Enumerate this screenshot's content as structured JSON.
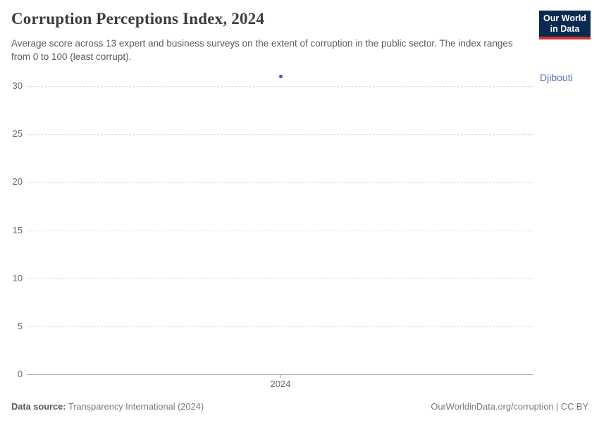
{
  "header": {
    "title": "Corruption Perceptions Index, 2024",
    "subtitle": "Average score across 13 expert and business surveys on the extent of corruption in the public sector. The index ranges from 0 to 100 (least corrupt).",
    "logo": {
      "line1": "Our World",
      "line2": "in Data"
    }
  },
  "chart_data": {
    "type": "scatter",
    "title": "Corruption Perceptions Index, 2024",
    "x": [
      "2024"
    ],
    "series": [
      {
        "name": "Djibouti",
        "values": [
          31
        ]
      }
    ],
    "xlabel": "",
    "ylabel": "",
    "ylim": [
      0,
      31
    ],
    "yticks": [
      0,
      5,
      10,
      15,
      20,
      25,
      30
    ],
    "xticks": [
      "2024"
    ],
    "grid": "horizontal-dashed",
    "legend_position": "right-of-point",
    "colors": {
      "point": "#3a5fa8",
      "series_label": "#5878b3",
      "gridline": "#dadada",
      "axis": "#a3a3a3",
      "tick_text": "#666666"
    }
  },
  "footer": {
    "datasource_label": "Data source:",
    "datasource_value": " Transparency International (2024)",
    "attribution": "OurWorldinData.org/corruption | CC BY"
  }
}
